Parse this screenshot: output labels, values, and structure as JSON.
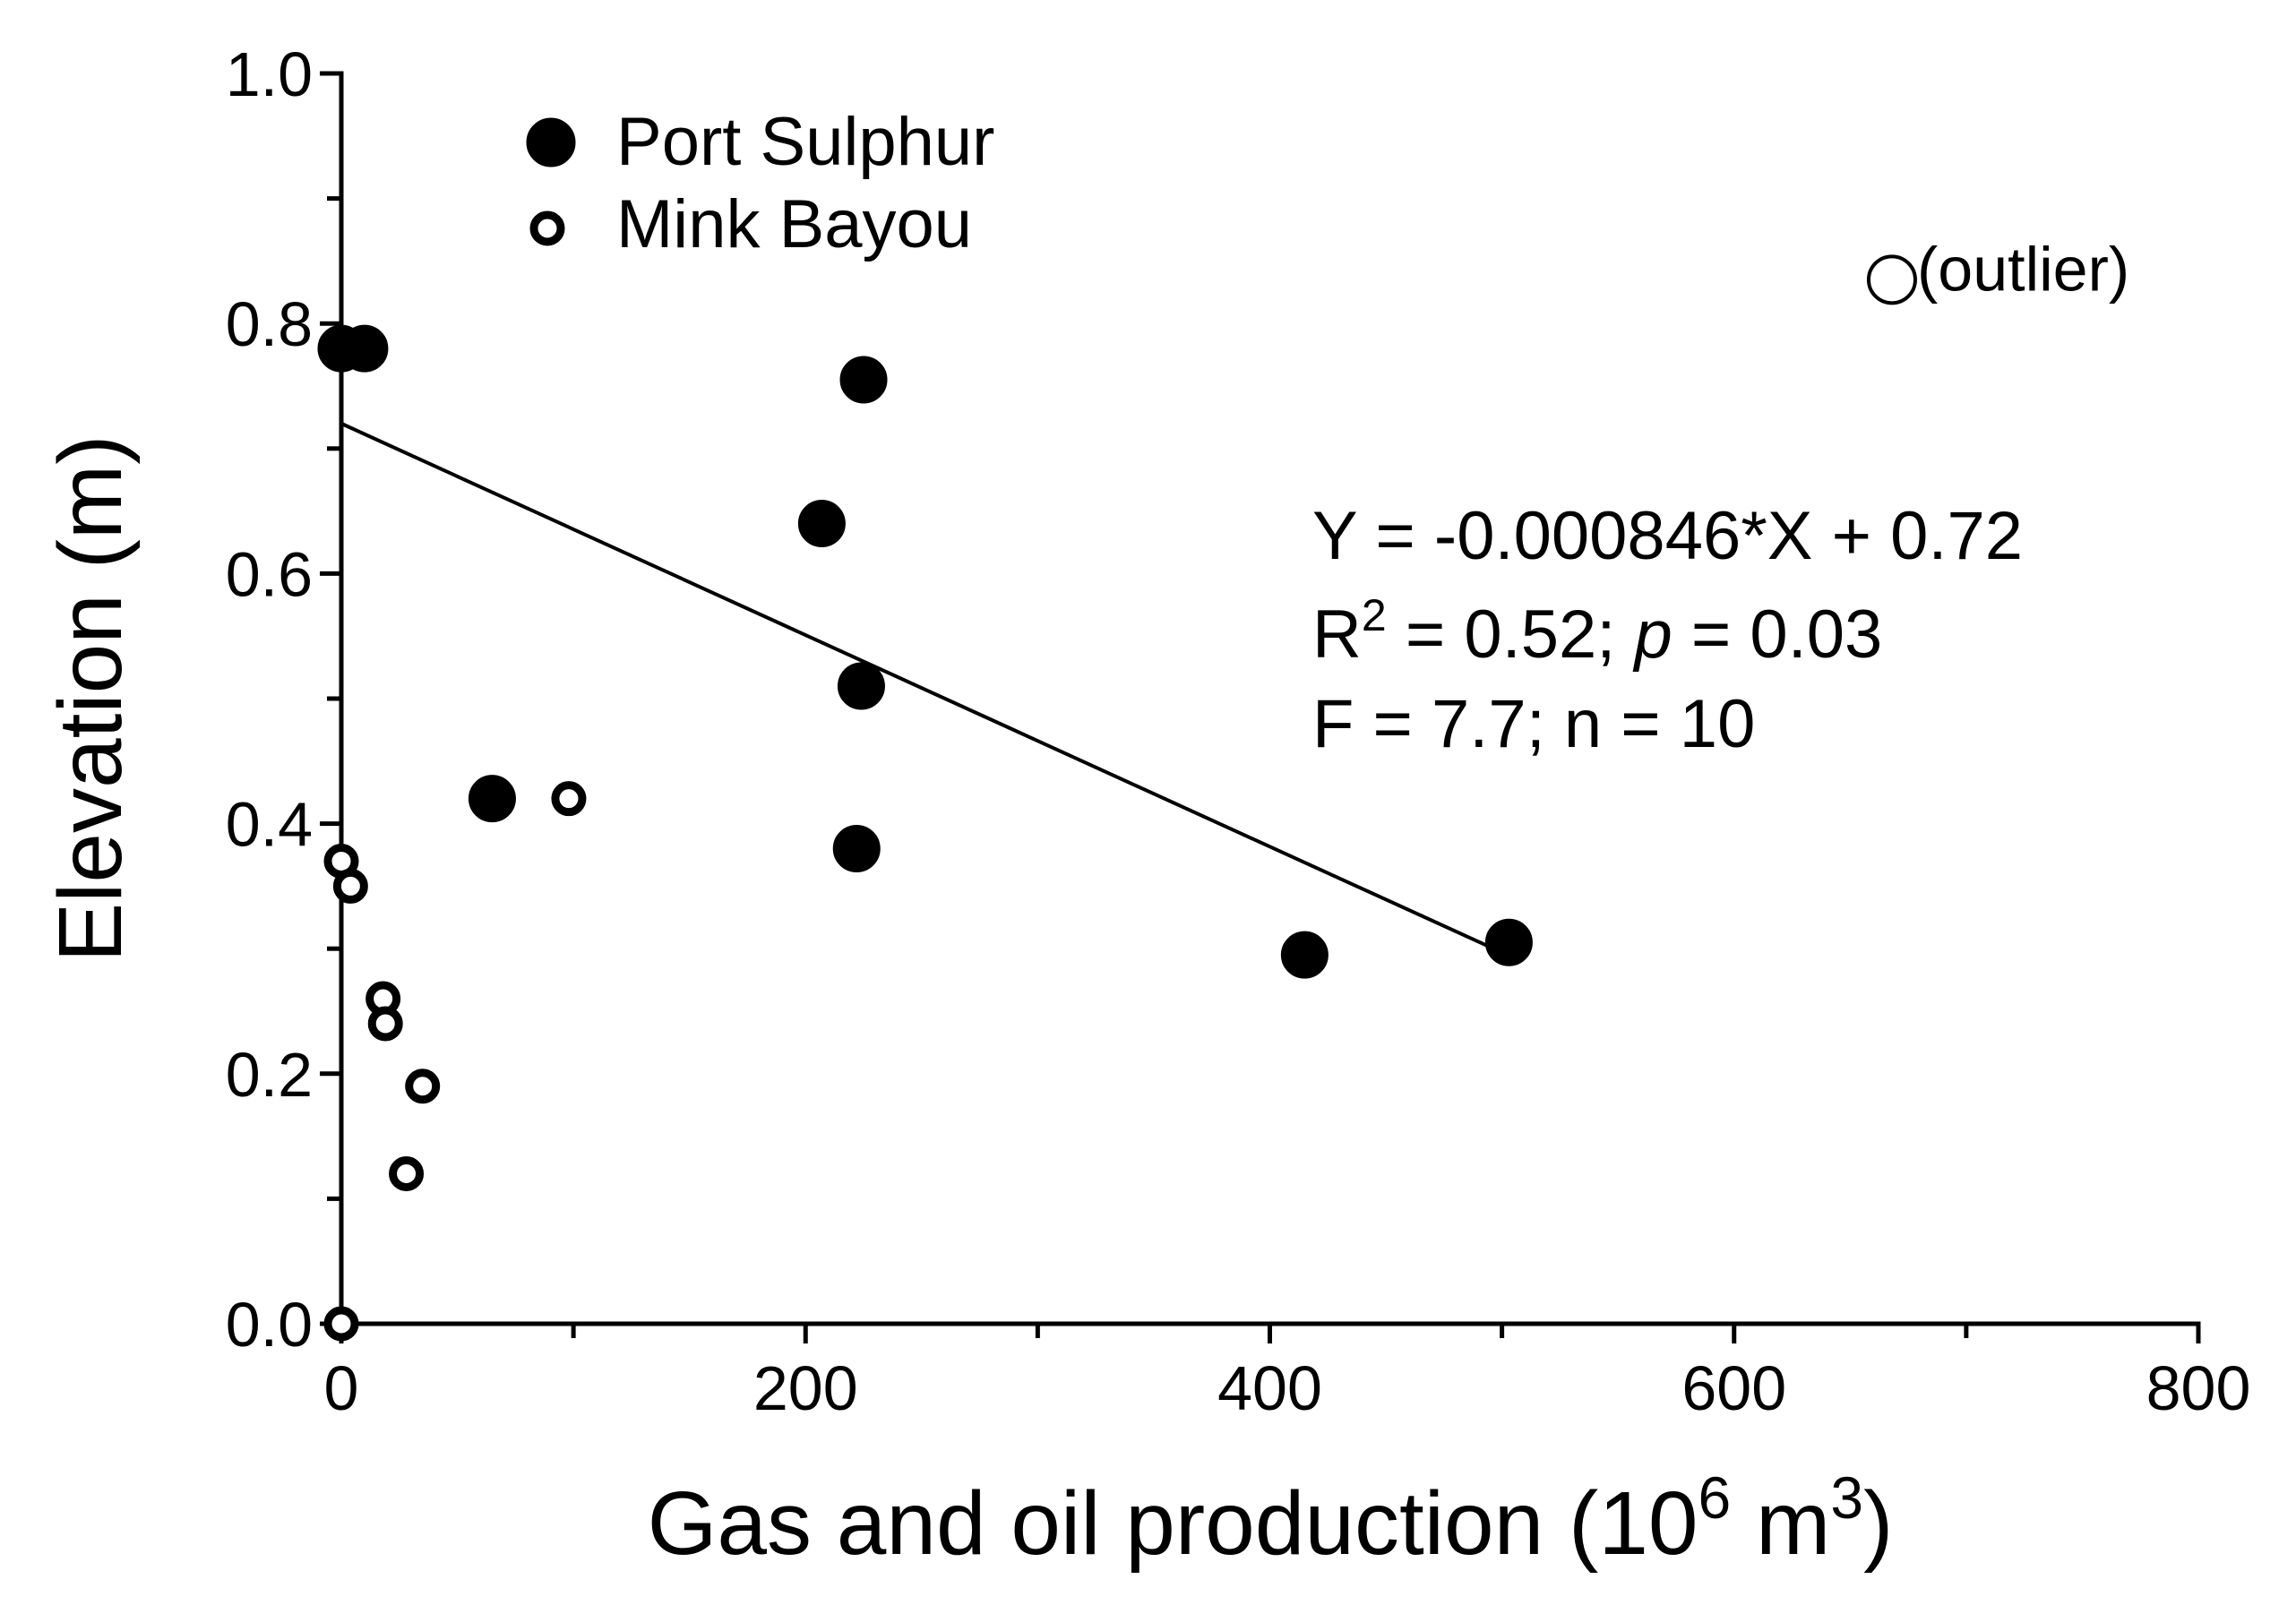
{
  "chart_data": {
    "type": "scatter",
    "xlabel": "Gas and oil production (10",
    "xlabel_sup1": "6",
    "xlabel_mid": " m",
    "xlabel_sup2": "3",
    "xlabel_end": ")",
    "ylabel": "Elevation (m)",
    "xlim": [
      0,
      800
    ],
    "ylim": [
      0,
      1.0
    ],
    "x_ticks": [
      0,
      200,
      400,
      600,
      800
    ],
    "x_tick_labels": [
      "0",
      "200",
      "400",
      "600",
      "800"
    ],
    "x_minor_ticks": [
      100,
      300,
      500,
      700
    ],
    "y_ticks": [
      0.0,
      0.2,
      0.4,
      0.6,
      0.8,
      1.0
    ],
    "y_tick_labels": [
      "0.0",
      "0.2",
      "0.4",
      "0.6",
      "0.8",
      "1.0"
    ],
    "y_minor_ticks": [
      0.1,
      0.3,
      0.5,
      0.7,
      0.9
    ],
    "grid": false,
    "legend_position": "top-left",
    "series": [
      {
        "name": "Port Sulphur",
        "marker": "filled",
        "x": [
          0,
          10,
          225,
          207,
          224,
          65,
          222,
          415,
          503
        ],
        "y": [
          0.78,
          0.78,
          0.755,
          0.64,
          0.51,
          0.42,
          0.38,
          0.295,
          0.305
        ]
      },
      {
        "name": "Mink Bayou",
        "marker": "open",
        "x": [
          0,
          4,
          18,
          19,
          35,
          28,
          98,
          0
        ],
        "y": [
          0.37,
          0.35,
          0.26,
          0.24,
          0.19,
          0.12,
          0.42,
          0.0
        ]
      }
    ],
    "outlier": {
      "x": 668,
      "y": 0.835,
      "label": "(outlier)"
    },
    "fit": {
      "slope": -0.000846,
      "intercept": 0.72,
      "x_range": [
        0,
        503
      ]
    },
    "annotation": {
      "line1": "Y = -0.000846*X + 0.72",
      "line2_a": "R",
      "line2_sup": "2",
      "line2_b": " = 0.52; ",
      "line2_p": "p",
      "line2_c": " = 0.03",
      "line3": "F = 7.7; n = 10"
    }
  }
}
